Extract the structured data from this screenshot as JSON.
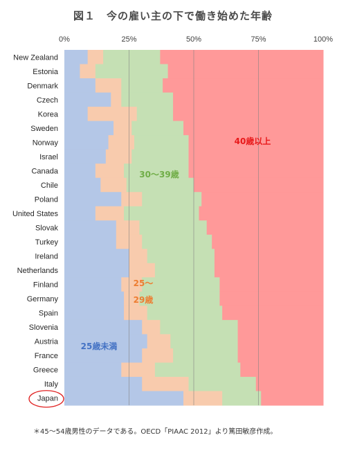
{
  "chart_data": {
    "type": "bar",
    "stacked": "horizontal-100-percent",
    "title": "図１　今の雇い主の下で働き始めた年齢",
    "footnote": "＊45〜54歳男性のデータである。OECD「PIAAC 2012」より篤田敏彦作成。",
    "x_ticks": [
      "0%",
      "25%",
      "50%",
      "75%",
      "100%"
    ],
    "xlim": [
      0,
      100
    ],
    "grid": "vertical at 25/50/75",
    "categories": [
      "New Zealand",
      "Estonia",
      "Denmark",
      "Czech",
      "Korea",
      "Sweden",
      "Norway",
      "Israel",
      "Canada",
      "Chile",
      "Poland",
      "United States",
      "Slovak",
      "Turkey",
      "Ireland",
      "Netherlands",
      "Finland",
      "Germany",
      "Spain",
      "Slovenia",
      "Austria",
      "France",
      "Greece",
      "Italy",
      "Japan"
    ],
    "highlighted_category": "Japan",
    "series": [
      {
        "name": "25歳未満",
        "color": "#b4c7e7",
        "values": [
          9,
          6,
          12,
          18,
          9,
          19,
          17,
          16,
          12,
          14,
          22,
          12,
          20,
          20,
          25,
          25,
          22,
          23,
          23,
          30,
          32,
          30,
          22,
          30,
          46
        ]
      },
      {
        "name": "25〜29歳",
        "color": "#f8cbad",
        "values": [
          6,
          6,
          10,
          4,
          19,
          7,
          10,
          10,
          11,
          10,
          8,
          11,
          9,
          10,
          7,
          10,
          8,
          6,
          9,
          7,
          9,
          12,
          13,
          18,
          15
        ]
      },
      {
        "name": "30〜39歳",
        "color": "#c5e0b4",
        "values": [
          22,
          28,
          16,
          20,
          14,
          20,
          21,
          22,
          25,
          26,
          23,
          29,
          26,
          27,
          26,
          23,
          30,
          31,
          29,
          30,
          26,
          25,
          33,
          26,
          15
        ]
      },
      {
        "name": "40歳以上",
        "color": "#ff9999",
        "values": [
          63,
          60,
          62,
          58,
          58,
          54,
          52,
          52,
          52,
          50,
          47,
          48,
          45,
          43,
          42,
          42,
          40,
          40,
          39,
          33,
          33,
          33,
          32,
          26,
          24
        ]
      }
    ],
    "annotations": [
      {
        "text": "40歳以上",
        "color": "#e8191a"
      },
      {
        "text": "30〜39歳",
        "color": "#70ad47"
      },
      {
        "text": "25〜",
        "color": "#ed7d31"
      },
      {
        "text": "29歳",
        "color": "#ed7d31"
      },
      {
        "text": "25歳未満",
        "color": "#4472c4"
      }
    ]
  }
}
